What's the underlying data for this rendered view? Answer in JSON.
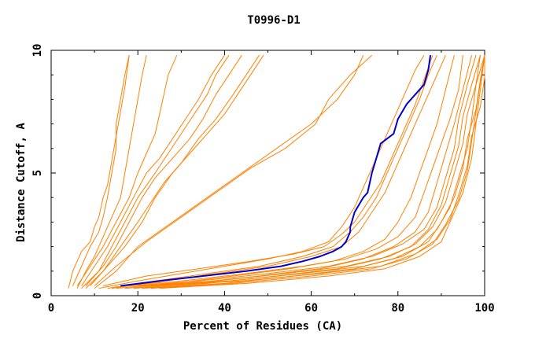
{
  "chart_data": {
    "type": "line",
    "title": "T0996-D1",
    "xlabel": "Percent of Residues (CA)",
    "ylabel": "Distance Cutoff, A",
    "xlim": [
      0,
      100
    ],
    "ylim": [
      0,
      10
    ],
    "xticks": [
      "0",
      "20",
      "40",
      "60",
      "80",
      "100"
    ],
    "yticks": [
      "0",
      "5",
      "10"
    ],
    "grid": false,
    "legend": "none",
    "colors": {
      "highlight": "#0000cc",
      "other": "#ff8000",
      "axis": "#000000"
    },
    "highlight_series": {
      "x": [
        16,
        25,
        35,
        45,
        53,
        58,
        62,
        65,
        67,
        68,
        68.5,
        69,
        69,
        70,
        72,
        73,
        74,
        75,
        76,
        79,
        80,
        82,
        84,
        86,
        87,
        87.5
      ],
      "y": [
        0.4,
        0.6,
        0.8,
        1.0,
        1.2,
        1.4,
        1.6,
        1.8,
        2.0,
        2.2,
        2.4,
        2.6,
        2.8,
        3.4,
        4.0,
        4.2,
        5.0,
        5.6,
        6.2,
        6.6,
        7.2,
        7.8,
        8.2,
        8.6,
        9.2,
        9.8
      ]
    },
    "series": [
      {
        "x": [
          4,
          5,
          7,
          9,
          10,
          11,
          12,
          13,
          14,
          15,
          16,
          17,
          18
        ],
        "y": [
          0.3,
          1.0,
          1.8,
          2.2,
          2.8,
          3.2,
          4.0,
          4.5,
          5.5,
          6.5,
          7.5,
          8.5,
          9.8
        ]
      },
      {
        "x": [
          5,
          7,
          9,
          11,
          12,
          13,
          14,
          15,
          15,
          16,
          17,
          18
        ],
        "y": [
          0.4,
          1.2,
          2.0,
          2.6,
          3.2,
          4.0,
          5.0,
          6.0,
          7.0,
          8.0,
          9.0,
          9.8
        ]
      },
      {
        "x": [
          6,
          8,
          10,
          12,
          14,
          16,
          17,
          18,
          19,
          20,
          21,
          22
        ],
        "y": [
          0.3,
          1.0,
          1.6,
          2.4,
          3.2,
          4.0,
          5.0,
          6.0,
          7.0,
          8.0,
          9.0,
          9.8
        ]
      },
      {
        "x": [
          6,
          9,
          12,
          15,
          18,
          20,
          22,
          24,
          25,
          26,
          27,
          29
        ],
        "y": [
          0.4,
          1.2,
          2.0,
          3.0,
          4.0,
          5.0,
          5.8,
          6.6,
          7.4,
          8.2,
          9.0,
          9.8
        ]
      },
      {
        "x": [
          7,
          10,
          13,
          16,
          19,
          22,
          25,
          28,
          31,
          34,
          37,
          40
        ],
        "y": [
          0.4,
          1.2,
          2.0,
          3.0,
          4.0,
          5.0,
          5.6,
          6.4,
          7.2,
          8.0,
          9.0,
          9.8
        ]
      },
      {
        "x": [
          7,
          11,
          14,
          17,
          20,
          24,
          27,
          30,
          33,
          36,
          38,
          41
        ],
        "y": [
          0.3,
          1.0,
          2.0,
          3.0,
          4.0,
          5.0,
          5.8,
          6.6,
          7.4,
          8.2,
          9.0,
          9.8
        ]
      },
      {
        "x": [
          8,
          12,
          15,
          18,
          21,
          24,
          28,
          32,
          35,
          38,
          41,
          44
        ],
        "y": [
          0.4,
          1.2,
          2.0,
          3.0,
          4.0,
          4.8,
          5.6,
          6.4,
          7.2,
          8.2,
          9.0,
          9.8
        ]
      },
      {
        "x": [
          8,
          12,
          16,
          20,
          23,
          26,
          30,
          34,
          38,
          42,
          45,
          48
        ],
        "y": [
          0.3,
          1.0,
          2.0,
          3.0,
          3.8,
          4.6,
          5.4,
          6.4,
          7.2,
          8.2,
          9.0,
          9.8
        ]
      },
      {
        "x": [
          9,
          13,
          17,
          21,
          24,
          28,
          32,
          36,
          40,
          43,
          46,
          49
        ],
        "y": [
          0.4,
          1.2,
          2.0,
          3.0,
          4.0,
          5.0,
          5.8,
          6.6,
          7.4,
          8.2,
          9.0,
          9.8
        ]
      },
      {
        "x": [
          10,
          15,
          20,
          28,
          36,
          44,
          52,
          60,
          66,
          70,
          72
        ],
        "y": [
          0.3,
          1.0,
          2.0,
          3.0,
          4.0,
          5.0,
          6.0,
          7.0,
          8.0,
          9.0,
          9.8
        ]
      },
      {
        "x": [
          10,
          15,
          22,
          30,
          38,
          46,
          54,
          61,
          64,
          69,
          74
        ],
        "y": [
          0.4,
          1.2,
          2.2,
          3.2,
          4.2,
          5.2,
          6.0,
          7.0,
          8.0,
          9.0,
          9.8
        ]
      },
      {
        "x": [
          11,
          20,
          30,
          40,
          50,
          58,
          64,
          67,
          70,
          72,
          74,
          76,
          78,
          80,
          82,
          84,
          86
        ],
        "y": [
          0.3,
          0.6,
          0.9,
          1.2,
          1.5,
          1.8,
          2.2,
          2.8,
          3.6,
          4.4,
          5.2,
          6.0,
          6.8,
          7.6,
          8.4,
          9.2,
          9.8
        ]
      },
      {
        "x": [
          12,
          22,
          34,
          46,
          56,
          63,
          67,
          70,
          73,
          76,
          78,
          80,
          82,
          84,
          86,
          88
        ],
        "y": [
          0.4,
          0.8,
          1.1,
          1.4,
          1.7,
          2.0,
          2.5,
          3.0,
          3.8,
          4.6,
          5.4,
          6.2,
          7.0,
          7.8,
          8.8,
          9.8
        ]
      },
      {
        "x": [
          13,
          24,
          36,
          48,
          58,
          65,
          69,
          72,
          75,
          77,
          79,
          81,
          83,
          85,
          87,
          89
        ],
        "y": [
          0.3,
          0.6,
          0.9,
          1.2,
          1.6,
          2.0,
          2.6,
          3.2,
          4.0,
          4.8,
          5.6,
          6.4,
          7.2,
          8.0,
          9.0,
          9.8
        ]
      },
      {
        "x": [
          14,
          26,
          38,
          50,
          60,
          67,
          71,
          74,
          77,
          79,
          81,
          83,
          85,
          87,
          89,
          91
        ],
        "y": [
          0.3,
          0.6,
          0.9,
          1.2,
          1.6,
          2.0,
          2.6,
          3.4,
          4.2,
          5.0,
          5.8,
          6.6,
          7.4,
          8.2,
          9.0,
          9.8
        ]
      },
      {
        "x": [
          15,
          28,
          42,
          55,
          65,
          72,
          77,
          80,
          83,
          85,
          87,
          89,
          91,
          93
        ],
        "y": [
          0.3,
          0.5,
          0.8,
          1.1,
          1.4,
          1.8,
          2.3,
          3.0,
          4.0,
          5.0,
          6.0,
          7.0,
          8.4,
          9.8
        ]
      },
      {
        "x": [
          16,
          30,
          45,
          58,
          68,
          75,
          80,
          84,
          86,
          88,
          90,
          92,
          94,
          95
        ],
        "y": [
          0.4,
          0.6,
          0.9,
          1.2,
          1.5,
          1.9,
          2.4,
          3.2,
          4.2,
          5.2,
          6.2,
          7.2,
          8.4,
          9.8
        ]
      },
      {
        "x": [
          17,
          32,
          48,
          62,
          72,
          79,
          84,
          87,
          89,
          91,
          93,
          95,
          97
        ],
        "y": [
          0.3,
          0.5,
          0.8,
          1.1,
          1.5,
          2.0,
          2.6,
          3.4,
          4.6,
          5.8,
          7.0,
          8.4,
          9.8
        ]
      },
      {
        "x": [
          18,
          34,
          50,
          64,
          74,
          81,
          86,
          89,
          91,
          93,
          94,
          96,
          98
        ],
        "y": [
          0.4,
          0.6,
          0.9,
          1.2,
          1.6,
          2.1,
          2.7,
          3.6,
          4.8,
          6.0,
          7.2,
          8.6,
          9.8
        ]
      },
      {
        "x": [
          19,
          36,
          52,
          66,
          76,
          83,
          87,
          90,
          92,
          94,
          95,
          97,
          99
        ],
        "y": [
          0.3,
          0.5,
          0.8,
          1.1,
          1.5,
          2.0,
          2.7,
          3.7,
          4.9,
          6.1,
          7.3,
          8.6,
          9.8
        ]
      },
      {
        "x": [
          20,
          38,
          54,
          68,
          78,
          84,
          88,
          91,
          93,
          95,
          96,
          98,
          100
        ],
        "y": [
          0.4,
          0.6,
          0.9,
          1.2,
          1.6,
          2.1,
          2.8,
          3.8,
          5.0,
          6.2,
          7.4,
          8.6,
          9.8
        ]
      },
      {
        "x": [
          21,
          40,
          56,
          70,
          79,
          85,
          89,
          92,
          94,
          96,
          97,
          98,
          99
        ],
        "y": [
          0.3,
          0.5,
          0.8,
          1.1,
          1.5,
          2.0,
          2.7,
          3.6,
          4.8,
          6.0,
          7.2,
          8.6,
          9.8
        ]
      },
      {
        "x": [
          22,
          41,
          58,
          72,
          81,
          87,
          90,
          93,
          95,
          96,
          98,
          99,
          100
        ],
        "y": [
          0.4,
          0.6,
          0.9,
          1.2,
          1.6,
          2.2,
          3.0,
          4.0,
          5.2,
          6.4,
          7.6,
          8.8,
          9.8
        ]
      },
      {
        "x": [
          23,
          42,
          60,
          74,
          82,
          88,
          91,
          94,
          96,
          97,
          98,
          99,
          100
        ],
        "y": [
          0.3,
          0.5,
          0.8,
          1.1,
          1.5,
          2.1,
          2.9,
          3.9,
          5.1,
          6.3,
          7.5,
          8.7,
          9.8
        ]
      },
      {
        "x": [
          24,
          44,
          62,
          76,
          84,
          89,
          92,
          94,
          96,
          97,
          99,
          100,
          100
        ],
        "y": [
          0.4,
          0.6,
          0.9,
          1.2,
          1.7,
          2.3,
          3.1,
          4.1,
          5.3,
          6.5,
          7.7,
          8.9,
          9.8
        ]
      },
      {
        "x": [
          25,
          45,
          64,
          77,
          85,
          90,
          92,
          95,
          97,
          98,
          99,
          100
        ],
        "y": [
          0.3,
          0.5,
          0.8,
          1.1,
          1.6,
          2.2,
          3.0,
          4.2,
          5.6,
          7.0,
          8.4,
          9.8
        ]
      }
    ]
  }
}
